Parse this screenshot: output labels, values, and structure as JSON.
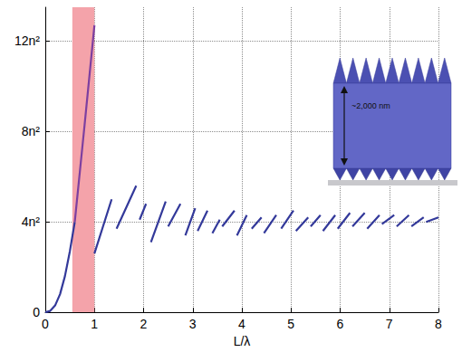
{
  "chart_data": {
    "type": "line",
    "x_label": "L/λ",
    "xlim": [
      0,
      8
    ],
    "xticks": [
      0,
      1,
      2,
      3,
      4,
      5,
      6,
      7,
      8
    ],
    "ylim": [
      0,
      13.5
    ],
    "yticks": [
      0,
      {
        "value": 4,
        "label": "4n²"
      },
      {
        "value": 8,
        "label": "8n²"
      },
      {
        "value": 12,
        "label": "12n²"
      }
    ],
    "grid": true,
    "shaded_region": {
      "x": [
        0.55,
        1.0
      ],
      "color": "#f4a3aa"
    },
    "annotations": [
      {
        "text": "~2,000 nm"
      }
    ],
    "series": [
      {
        "color": "#33399a",
        "x": [
          0,
          0.1,
          0.2,
          0.3,
          0.4,
          0.5,
          0.6
        ],
        "values": [
          0,
          0.06,
          0.3,
          0.8,
          1.6,
          2.7,
          4.0
        ]
      },
      {
        "color": "#7d3fa0",
        "x": [
          0.6,
          0.8,
          1.0
        ],
        "values": [
          4.0,
          8.3,
          12.7
        ]
      },
      {
        "color": "#33399a",
        "x": [
          1.0,
          1.35,
          1.35,
          1.45,
          1.85,
          1.85,
          1.92,
          2.05,
          2.05,
          2.15,
          2.45,
          2.45,
          2.5,
          2.75,
          2.75,
          2.85,
          3.05,
          3.05,
          3.1,
          3.3,
          3.3,
          3.4,
          3.55,
          3.55,
          3.6,
          3.85,
          3.85,
          3.9,
          4.1,
          4.1,
          4.2,
          4.4,
          4.4,
          4.45,
          4.7,
          4.7,
          4.8,
          5.05,
          5.05,
          5.1,
          5.35,
          5.35,
          5.4,
          5.6,
          5.6,
          5.65,
          5.9,
          5.9,
          5.95,
          6.2,
          6.2,
          6.25,
          6.5,
          6.5,
          6.55,
          6.8,
          6.8,
          6.85,
          7.1,
          7.1,
          7.15,
          7.4,
          7.4,
          7.45,
          7.7,
          7.7,
          7.75,
          8.0
        ],
        "values": [
          2.6,
          5.0,
          null,
          3.7,
          5.6,
          null,
          4.1,
          4.8,
          null,
          3.1,
          4.9,
          null,
          3.8,
          4.8,
          null,
          3.4,
          4.6,
          null,
          3.6,
          4.5,
          null,
          3.5,
          4.1,
          null,
          3.8,
          4.5,
          null,
          3.4,
          4.3,
          null,
          3.7,
          4.2,
          null,
          3.5,
          4.3,
          null,
          3.7,
          4.5,
          null,
          3.6,
          4.2,
          null,
          3.8,
          4.3,
          null,
          3.6,
          4.3,
          null,
          3.7,
          4.4,
          null,
          3.8,
          4.4,
          null,
          3.7,
          4.3,
          null,
          3.9,
          4.3,
          null,
          3.8,
          4.3,
          null,
          3.8,
          4.2,
          null,
          4.0,
          4.2
        ]
      }
    ]
  }
}
